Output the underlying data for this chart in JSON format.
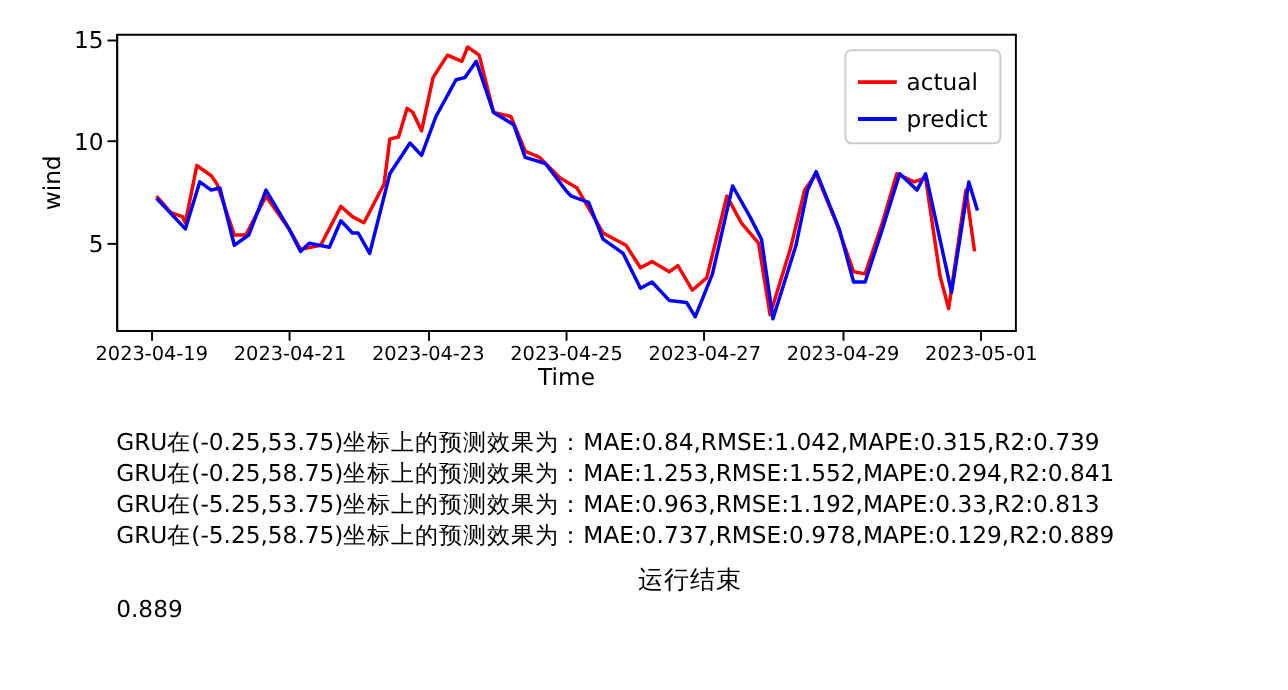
{
  "chart_data": {
    "type": "line",
    "xlabel": "Time",
    "ylabel": "wind",
    "xlim": [
      "2023-04-18T12:00",
      "2023-05-01T12:00"
    ],
    "ylim": [
      0.75,
      15.25
    ],
    "xticks": [
      "2023-04-19",
      "2023-04-21",
      "2023-04-23",
      "2023-04-25",
      "2023-04-27",
      "2023-04-29",
      "2023-05-01"
    ],
    "yticks": [
      5,
      10,
      15
    ],
    "grid": false,
    "legend": "top right",
    "line_style": "solid",
    "marker": "none",
    "series": [
      {
        "name": "actual",
        "color": "#ff0000",
        "x": [
          "2023-04-19T02:00",
          "2023-04-19T07:00",
          "2023-04-19T11:00",
          "2023-04-19T12:00",
          "2023-04-19T16:00",
          "2023-04-19T21:00",
          "2023-04-19T23:00",
          "2023-04-20T05:00",
          "2023-04-20T09:00",
          "2023-04-20T16:00",
          "2023-04-21T00:00",
          "2023-04-21T04:00",
          "2023-04-21T11:00",
          "2023-04-21T18:00",
          "2023-04-21T22:00",
          "2023-04-22T02:00",
          "2023-04-22T09:00",
          "2023-04-22T11:00",
          "2023-04-22T14:00",
          "2023-04-22T17:00",
          "2023-04-22T19:00",
          "2023-04-22T22:00",
          "2023-04-23T02:00",
          "2023-04-23T07:00",
          "2023-04-23T12:00",
          "2023-04-23T14:00",
          "2023-04-23T18:00",
          "2023-04-23T23:00",
          "2023-04-24T05:00",
          "2023-04-24T10:00",
          "2023-04-24T15:00",
          "2023-04-24T22:00",
          "2023-04-25T04:00",
          "2023-04-25T13:00",
          "2023-04-25T21:00",
          "2023-04-26T02:00",
          "2023-04-26T06:00",
          "2023-04-26T12:00",
          "2023-04-26T15:00",
          "2023-04-26T20:00",
          "2023-04-27T01:00",
          "2023-04-27T08:00",
          "2023-04-27T13:00",
          "2023-04-27T19:00",
          "2023-04-27T23:00",
          "2023-04-28T06:00",
          "2023-04-28T11:00",
          "2023-04-28T15:00",
          "2023-04-28T22:00",
          "2023-04-29T04:00",
          "2023-04-29T08:00",
          "2023-04-29T14:00",
          "2023-04-29T19:00",
          "2023-04-30T01:00",
          "2023-04-30T05:00",
          "2023-04-30T10:00",
          "2023-04-30T13:00",
          "2023-04-30T19:00",
          "2023-04-30T22:00"
        ],
        "values": [
          7.3,
          6.5,
          6.3,
          6.0,
          8.8,
          8.3,
          7.9,
          5.4,
          5.4,
          7.3,
          5.7,
          4.7,
          4.9,
          6.8,
          6.3,
          6.0,
          7.9,
          10.1,
          10.2,
          11.6,
          11.4,
          10.5,
          13.1,
          14.2,
          13.9,
          14.6,
          14.2,
          11.4,
          11.2,
          9.5,
          9.2,
          8.2,
          7.7,
          5.5,
          4.9,
          3.8,
          4.1,
          3.6,
          3.9,
          2.7,
          3.3,
          7.3,
          6.0,
          5.0,
          1.5,
          4.7,
          7.6,
          8.4,
          6.0,
          3.6,
          3.5,
          6.0,
          8.4,
          8.0,
          8.2,
          3.4,
          1.8,
          7.6,
          4.6
        ]
      },
      {
        "name": "predict",
        "color": "#0000ff",
        "x": [
          "2023-04-19T02:00",
          "2023-04-19T12:00",
          "2023-04-19T17:00",
          "2023-04-19T21:00",
          "2023-04-20T00:00",
          "2023-04-20T05:00",
          "2023-04-20T10:00",
          "2023-04-20T16:00",
          "2023-04-21T00:00",
          "2023-04-21T04:00",
          "2023-04-21T07:00",
          "2023-04-21T14:00",
          "2023-04-21T18:00",
          "2023-04-21T22:00",
          "2023-04-22T00:00",
          "2023-04-22T04:00",
          "2023-04-22T11:00",
          "2023-04-22T18:00",
          "2023-04-22T22:00",
          "2023-04-23T03:00",
          "2023-04-23T10:00",
          "2023-04-23T13:00",
          "2023-04-23T17:00",
          "2023-04-23T23:00",
          "2023-04-24T06:00",
          "2023-04-24T10:00",
          "2023-04-24T17:00",
          "2023-04-25T00:00",
          "2023-04-25T02:00",
          "2023-04-25T08:00",
          "2023-04-25T13:00",
          "2023-04-25T20:00",
          "2023-04-26T02:00",
          "2023-04-26T06:00",
          "2023-04-26T12:00",
          "2023-04-26T18:00",
          "2023-04-26T21:00",
          "2023-04-27T03:00",
          "2023-04-27T10:00",
          "2023-04-27T16:00",
          "2023-04-27T20:00",
          "2023-04-28T00:00",
          "2023-04-28T08:00",
          "2023-04-28T12:00",
          "2023-04-28T15:00",
          "2023-04-28T23:00",
          "2023-04-29T04:00",
          "2023-04-29T08:00",
          "2023-04-29T14:00",
          "2023-04-29T20:00",
          "2023-04-30T02:00",
          "2023-04-30T05:00",
          "2023-04-30T14:00",
          "2023-04-30T20:00",
          "2023-04-30T23:00"
        ],
        "values": [
          7.2,
          5.7,
          8.0,
          7.6,
          7.7,
          4.9,
          5.4,
          7.6,
          5.7,
          4.6,
          5.0,
          4.8,
          6.1,
          5.5,
          5.5,
          4.5,
          8.4,
          9.9,
          9.3,
          11.2,
          13.0,
          13.1,
          13.9,
          11.4,
          10.8,
          9.2,
          8.9,
          7.6,
          7.3,
          7.0,
          5.2,
          4.5,
          2.8,
          3.1,
          2.2,
          2.1,
          1.4,
          3.5,
          7.8,
          6.3,
          5.2,
          1.3,
          4.9,
          7.6,
          8.5,
          5.7,
          3.1,
          3.1,
          5.7,
          8.4,
          7.6,
          8.4,
          2.6,
          8.0,
          6.6
        ]
      }
    ],
    "annotations": [
      "GRU在(-0.25,53.75)坐标上的预测效果为：MAE:0.84,RMSE:1.042,MAPE:0.315,R2:0.739",
      "GRU在(-0.25,58.75)坐标上的预测效果为：MAE:1.253,RMSE:1.552,MAPE:0.294,R2:0.841",
      "GRU在(-5.25,53.75)坐标上的预测效果为：MAE:0.963,RMSE:1.192,MAPE:0.33,R2:0.813",
      "GRU在(-5.25,58.75)坐标上的预测效果为：MAE:0.737,RMSE:0.978,MAPE:0.129,R2:0.889",
      "运行结束",
      "0.889"
    ]
  }
}
